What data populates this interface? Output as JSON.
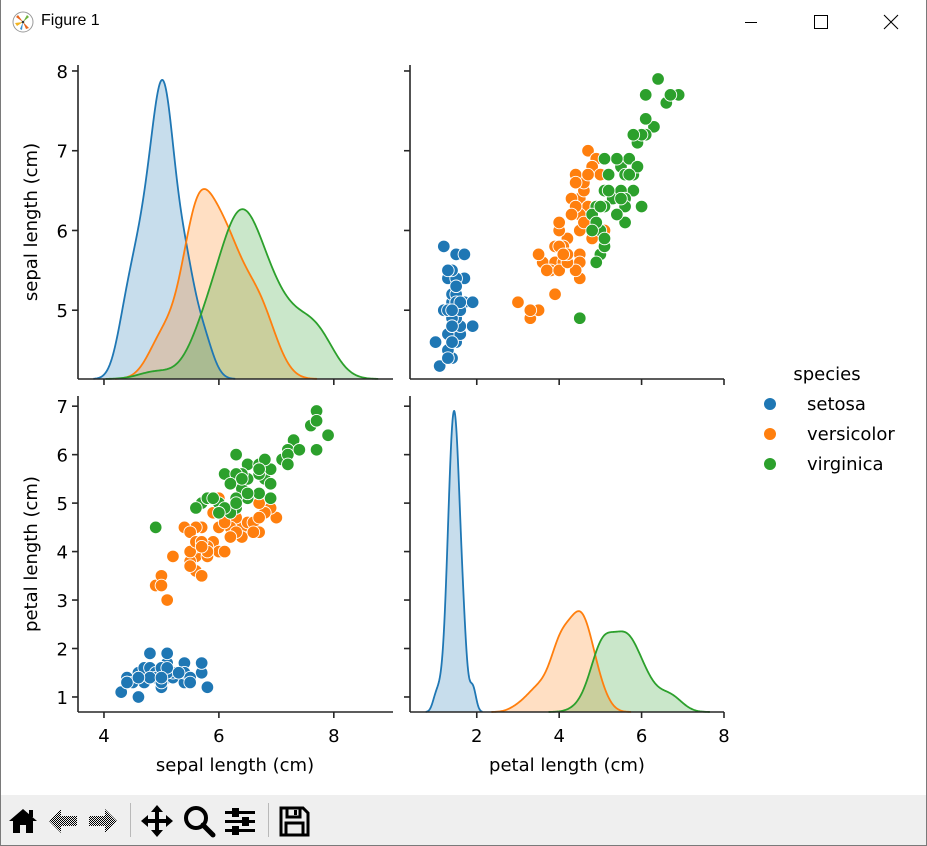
{
  "window": {
    "title": "Figure 1",
    "icons": {
      "app": "matplotlib-logo-icon",
      "minimize": "minimize-icon",
      "maximize": "maximize-icon",
      "close": "close-icon"
    }
  },
  "toolbar": {
    "buttons": [
      {
        "name": "home",
        "icon": "home-icon"
      },
      {
        "name": "back",
        "icon": "back-arrow-icon"
      },
      {
        "name": "forward",
        "icon": "forward-arrow-icon"
      },
      {
        "name": "pan",
        "icon": "pan-move-icon"
      },
      {
        "name": "zoom",
        "icon": "zoom-magnifier-icon"
      },
      {
        "name": "configure-subplots",
        "icon": "sliders-icon"
      },
      {
        "name": "save",
        "icon": "save-floppy-icon"
      }
    ]
  },
  "colors": {
    "setosa": "#1f77b4",
    "versicolor": "#ff7f0e",
    "virginica": "#2ca02c"
  },
  "chart_data": {
    "type": "pairplot",
    "variables": [
      "sepal length (cm)",
      "petal length (cm)"
    ],
    "hue": "species",
    "legend": {
      "title": "species",
      "entries": [
        "setosa",
        "versicolor",
        "virginica"
      ],
      "placement": "right-center"
    },
    "diag_kind": "kde",
    "offdiag_kind": "scatter",
    "axes": {
      "sepal": {
        "label": "sepal length (cm)",
        "xlim": [
          3.548,
          9.03
        ],
        "ylim": [
          4.1375,
          8.075
        ],
        "xticks": [
          4,
          6,
          8
        ],
        "yticks": [
          5,
          6,
          7,
          8
        ]
      },
      "petal": {
        "label": "petal length (cm)",
        "xlim": [
          0.38,
          8.0
        ],
        "ylim": [
          0.69,
          7.21
        ],
        "xticks": [
          2,
          4,
          6,
          8
        ],
        "yticks": [
          1,
          2,
          3,
          4,
          5,
          6,
          7
        ]
      }
    },
    "tick_labels": {
      "sepal_x": [
        "4",
        "6",
        "8"
      ],
      "sepal_y": [
        "5",
        "6",
        "7",
        "8"
      ],
      "petal_x": [
        "2",
        "4",
        "6",
        "8"
      ],
      "petal_y": [
        "1",
        "2",
        "3",
        "4",
        "5",
        "6",
        "7"
      ]
    },
    "series": [
      {
        "name": "setosa",
        "sepal_length": [
          5.1,
          4.9,
          4.7,
          4.6,
          5.0,
          5.4,
          4.6,
          5.0,
          4.4,
          4.9,
          5.4,
          4.8,
          4.8,
          4.3,
          5.8,
          5.7,
          5.4,
          5.1,
          5.7,
          5.1,
          5.4,
          5.1,
          4.6,
          5.1,
          4.8,
          5.0,
          5.0,
          5.2,
          5.2,
          4.7,
          4.8,
          5.4,
          5.2,
          5.5,
          4.9,
          5.0,
          5.5,
          4.9,
          4.4,
          5.1,
          5.0,
          4.5,
          4.4,
          5.0,
          5.1,
          4.8,
          5.1,
          4.6,
          5.3,
          5.0
        ],
        "petal_length": [
          1.4,
          1.4,
          1.3,
          1.5,
          1.4,
          1.7,
          1.4,
          1.5,
          1.4,
          1.5,
          1.5,
          1.6,
          1.4,
          1.1,
          1.2,
          1.5,
          1.3,
          1.4,
          1.7,
          1.5,
          1.7,
          1.5,
          1.0,
          1.7,
          1.9,
          1.6,
          1.6,
          1.5,
          1.4,
          1.6,
          1.6,
          1.5,
          1.5,
          1.4,
          1.5,
          1.2,
          1.3,
          1.4,
          1.3,
          1.5,
          1.3,
          1.3,
          1.3,
          1.6,
          1.9,
          1.4,
          1.6,
          1.4,
          1.5,
          1.4
        ]
      },
      {
        "name": "versicolor",
        "sepal_length": [
          7.0,
          6.4,
          6.9,
          5.5,
          6.5,
          5.7,
          6.3,
          4.9,
          6.6,
          5.2,
          5.0,
          5.9,
          6.0,
          6.1,
          5.6,
          6.7,
          5.6,
          5.8,
          6.2,
          5.6,
          5.9,
          6.1,
          6.3,
          6.1,
          6.4,
          6.6,
          6.8,
          6.7,
          6.0,
          5.7,
          5.5,
          5.5,
          5.8,
          6.0,
          5.4,
          6.0,
          6.7,
          6.3,
          5.6,
          5.5,
          5.5,
          6.1,
          5.8,
          5.0,
          5.6,
          5.7,
          5.7,
          6.2,
          5.1,
          5.7
        ],
        "petal_length": [
          4.7,
          4.5,
          4.9,
          4.0,
          4.6,
          4.5,
          4.7,
          3.3,
          4.6,
          3.9,
          3.5,
          4.2,
          4.0,
          4.7,
          3.6,
          4.4,
          4.5,
          4.1,
          4.5,
          3.9,
          4.8,
          4.0,
          4.9,
          4.7,
          4.3,
          4.4,
          4.8,
          5.0,
          4.5,
          3.5,
          3.8,
          3.7,
          3.9,
          5.1,
          4.5,
          4.5,
          4.7,
          4.4,
          4.1,
          4.0,
          4.4,
          4.6,
          4.0,
          3.3,
          4.2,
          4.2,
          4.2,
          4.3,
          3.0,
          4.1
        ]
      },
      {
        "name": "virginica",
        "sepal_length": [
          6.3,
          5.8,
          7.1,
          6.3,
          6.5,
          7.6,
          4.9,
          7.3,
          6.7,
          7.2,
          6.5,
          6.4,
          6.8,
          5.7,
          5.8,
          6.4,
          6.5,
          7.7,
          7.7,
          6.0,
          6.9,
          5.6,
          7.7,
          6.3,
          6.7,
          7.2,
          6.2,
          6.1,
          6.4,
          7.2,
          7.4,
          7.9,
          6.4,
          6.3,
          6.1,
          7.7,
          6.3,
          6.4,
          6.0,
          6.9,
          6.7,
          6.9,
          5.8,
          6.8,
          6.7,
          6.7,
          6.3,
          6.5,
          6.2,
          5.9
        ],
        "petal_length": [
          6.0,
          5.1,
          5.9,
          5.6,
          5.8,
          6.6,
          4.5,
          6.3,
          5.8,
          6.1,
          5.1,
          5.3,
          5.5,
          5.0,
          5.1,
          5.3,
          5.5,
          6.7,
          6.9,
          5.0,
          5.7,
          4.9,
          6.7,
          4.9,
          5.7,
          6.0,
          4.8,
          4.9,
          5.6,
          5.8,
          6.1,
          6.4,
          5.6,
          5.1,
          5.6,
          6.1,
          5.6,
          5.5,
          4.8,
          5.4,
          5.6,
          5.1,
          5.1,
          5.9,
          5.7,
          5.2,
          5.0,
          5.2,
          5.4,
          5.1
        ]
      }
    ]
  }
}
